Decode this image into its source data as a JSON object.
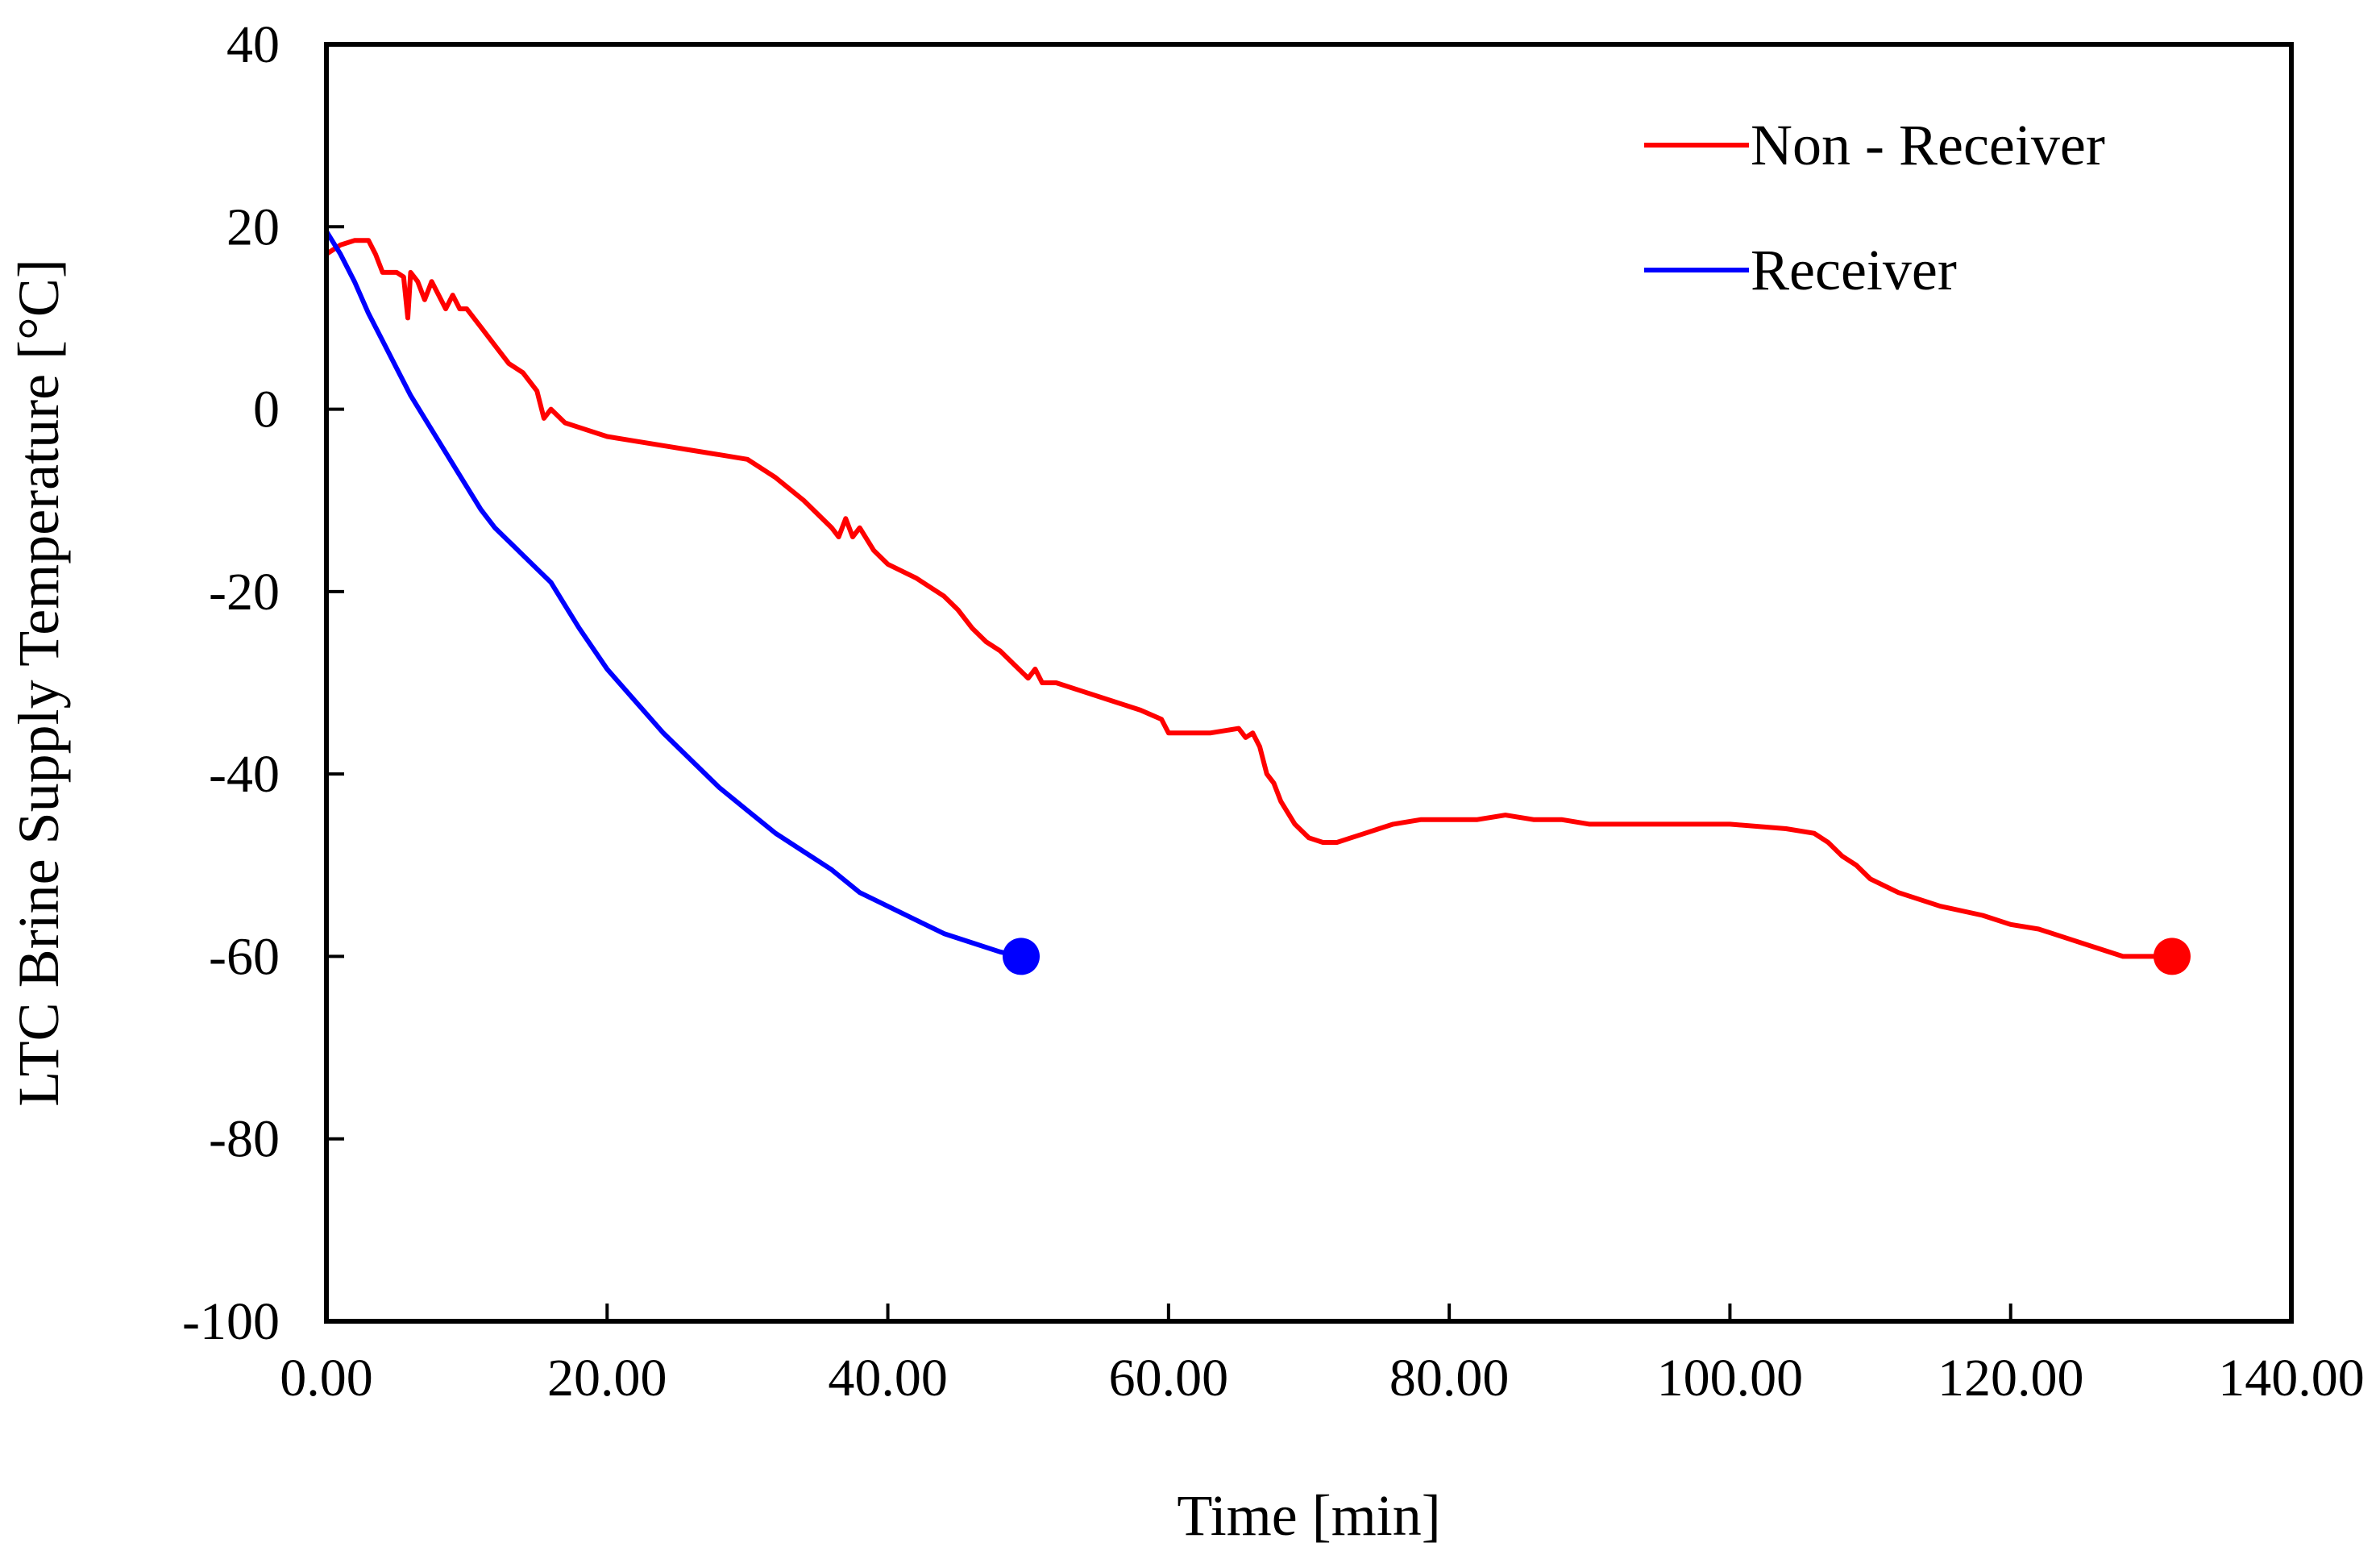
{
  "chart_data": {
    "type": "line",
    "title": "",
    "xlabel": "Time [min]",
    "ylabel": "LTC Brine Supply Temperature [°C]",
    "xlim": [
      0,
      140
    ],
    "ylim": [
      -100,
      40
    ],
    "x_ticks": [
      0,
      20,
      40,
      60,
      80,
      100,
      120,
      140
    ],
    "x_tick_labels": [
      "0.00",
      "20.00",
      "40.00",
      "60.00",
      "80.00",
      "100.00",
      "120.00",
      "140.00"
    ],
    "y_ticks": [
      40,
      20,
      0,
      -20,
      -40,
      -60,
      -80,
      -100
    ],
    "y_tick_labels": [
      "40",
      "20",
      "0",
      "-20",
      "-40",
      "-60",
      "-80",
      "-100"
    ],
    "grid": false,
    "legend_position": "top-right",
    "series": [
      {
        "name": "Non - Receiver",
        "color": "#ff0000",
        "end_marker": true,
        "x": [
          0,
          1,
          2,
          3,
          3.5,
          4,
          5,
          5.5,
          5.8,
          6,
          6.5,
          7,
          7.5,
          8,
          8.5,
          9,
          9.5,
          10,
          11,
          12,
          13,
          14,
          15,
          15.5,
          16,
          17,
          18,
          20,
          22,
          24,
          26,
          28,
          30,
          32,
          34,
          35,
          36,
          36.5,
          37,
          37.5,
          38,
          39,
          40,
          42,
          44,
          45,
          46,
          47,
          48,
          49,
          50,
          50.5,
          51,
          52,
          54,
          56,
          58,
          59.5,
          60,
          61,
          63,
          65,
          65.5,
          66,
          66.5,
          67,
          67.5,
          68,
          69,
          70,
          71,
          72,
          73,
          74,
          75,
          76,
          78,
          80,
          82,
          84,
          86,
          88,
          90,
          95,
          100,
          104,
          106,
          107,
          108,
          109,
          110,
          112,
          115,
          118,
          120,
          122,
          124,
          126,
          128,
          130,
          131.5
        ],
        "y": [
          17,
          18,
          18.5,
          18.5,
          17,
          15,
          15,
          14.5,
          10,
          15,
          14,
          12,
          14,
          12.5,
          11,
          12.5,
          11,
          11,
          9,
          7,
          5,
          4,
          2,
          -1,
          0,
          -1.5,
          -2,
          -3,
          -3.5,
          -4,
          -4.5,
          -5,
          -5.5,
          -7.5,
          -10,
          -11.5,
          -13,
          -14,
          -12,
          -14,
          -13,
          -15.5,
          -17,
          -18.5,
          -20.5,
          -22,
          -24,
          -25.5,
          -26.5,
          -28,
          -29.5,
          -28.5,
          -30,
          -30,
          -31,
          -32,
          -33,
          -34,
          -35.5,
          -35.5,
          -35.5,
          -35,
          -36,
          -35.5,
          -37,
          -40,
          -41,
          -43,
          -45.5,
          -47,
          -47.5,
          -47.5,
          -47,
          -46.5,
          -46,
          -45.5,
          -45,
          -45,
          -45,
          -44.5,
          -45,
          -45,
          -45.5,
          -45.5,
          -45.5,
          -46,
          -46.5,
          -47.5,
          -49,
          -50,
          -51.5,
          -53,
          -54.5,
          -55.5,
          -56.5,
          -57,
          -58,
          -59,
          -60,
          -60,
          -60
        ]
      },
      {
        "name": "Receiver",
        "color": "#0000ff",
        "end_marker": true,
        "x": [
          0,
          1,
          2,
          3,
          4,
          5,
          6,
          7,
          8,
          9,
          10,
          11,
          12,
          13,
          14,
          15,
          16,
          17,
          18,
          20,
          22,
          24,
          26,
          28,
          30,
          32,
          34,
          36,
          38,
          40,
          42,
          44,
          46,
          48,
          49.5
        ],
        "y": [
          19.5,
          17,
          14,
          10.5,
          7.5,
          4.5,
          1.5,
          -1,
          -3.5,
          -6,
          -8.5,
          -11,
          -13,
          -14.5,
          -16,
          -17.5,
          -19,
          -21.5,
          -24,
          -28.5,
          -32,
          -35.5,
          -38.5,
          -41.5,
          -44,
          -46.5,
          -48.5,
          -50.5,
          -53,
          -54.5,
          -56,
          -57.5,
          -58.5,
          -59.5,
          -60
        ]
      }
    ]
  }
}
